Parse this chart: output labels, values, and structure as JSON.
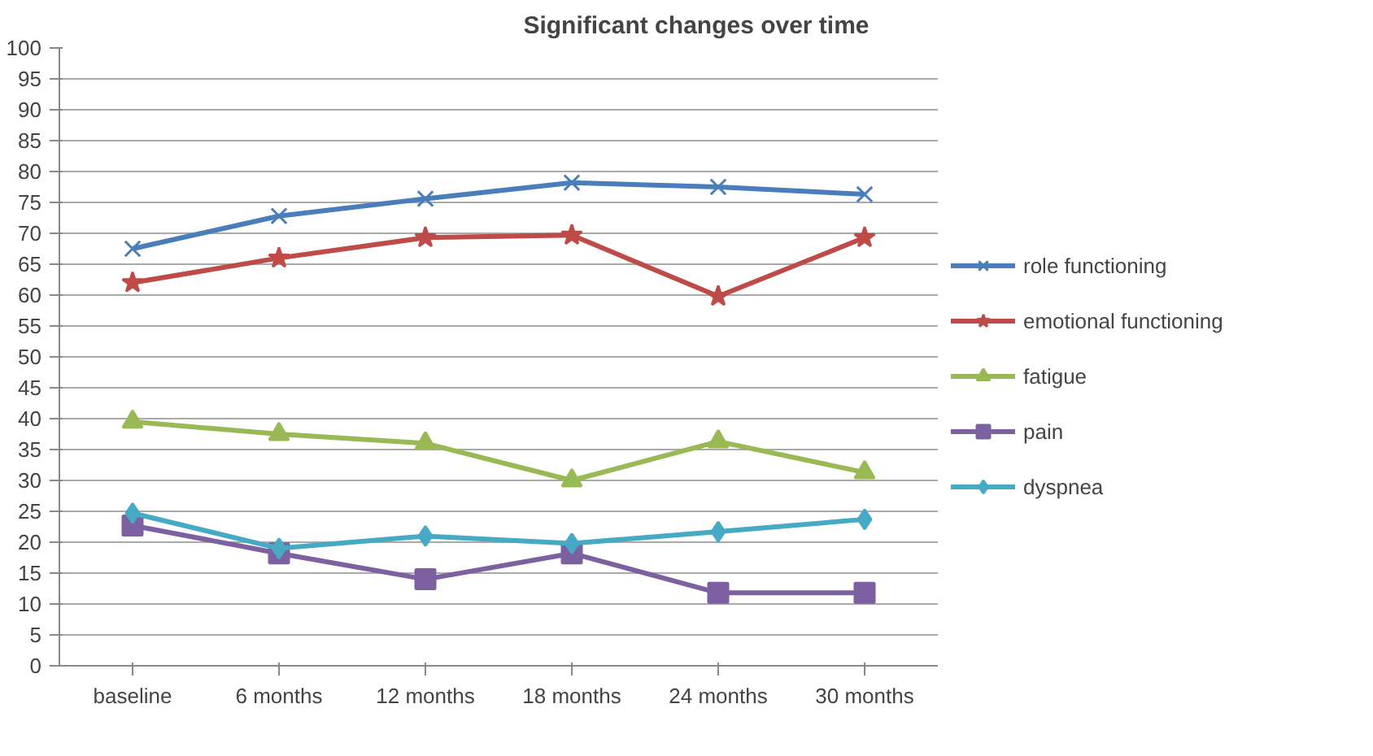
{
  "chart_data": {
    "type": "line",
    "title": "Significant changes over time",
    "categories": [
      "baseline",
      "6 months",
      "12 months",
      "18 months",
      "24 months",
      "30 months"
    ],
    "series": [
      {
        "name": "role functioning",
        "color": "#4a7ebb",
        "marker": "cross",
        "values": [
          67.5,
          72.8,
          75.6,
          78.2,
          77.5,
          76.3
        ]
      },
      {
        "name": "emotional functioning",
        "color": "#be4b48",
        "marker": "star",
        "values": [
          62,
          66,
          69.3,
          69.7,
          59.8,
          69.3
        ]
      },
      {
        "name": "fatigue",
        "color": "#98b954",
        "marker": "triangle",
        "values": [
          39.5,
          37.5,
          36,
          30,
          36.3,
          31.3
        ]
      },
      {
        "name": "pain",
        "color": "#7d60a0",
        "marker": "square",
        "values": [
          22.7,
          18.2,
          14,
          18.2,
          11.8,
          11.8
        ]
      },
      {
        "name": "dyspnea",
        "color": "#46aac5",
        "marker": "diamond",
        "values": [
          24.7,
          19,
          21,
          19.8,
          21.7,
          23.7
        ]
      }
    ],
    "ylim": [
      0,
      100
    ],
    "yticks": [
      0,
      5,
      10,
      15,
      20,
      25,
      30,
      35,
      40,
      45,
      50,
      55,
      60,
      65,
      70,
      75,
      80,
      85,
      90,
      95,
      100
    ],
    "grid": "y",
    "legend": "right",
    "line_style": "solid"
  }
}
